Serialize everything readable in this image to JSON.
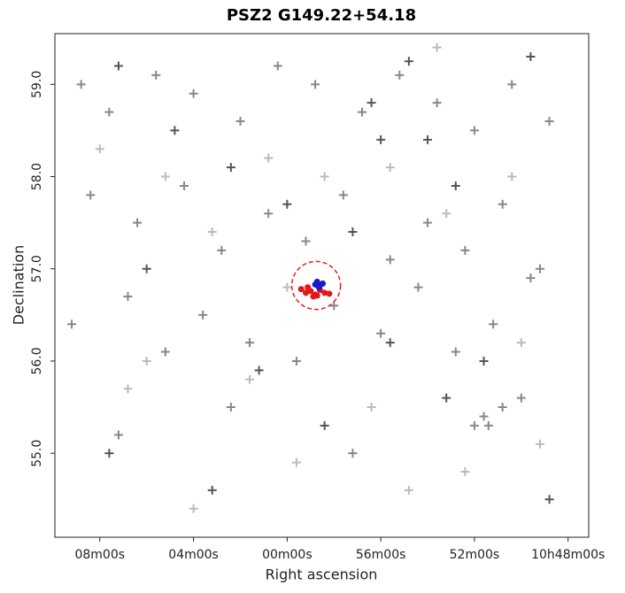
{
  "chart_data": {
    "type": "scatter",
    "title": "PSZ2 G149.22+54.18",
    "x_label": "Right ascension",
    "y_label": "Declination",
    "xlim": [
      167.48,
      161.78
    ],
    "ylim": [
      54.09,
      59.55
    ],
    "xticks": [
      {
        "value": 167,
        "label": "08m00s"
      },
      {
        "value": 166,
        "label": "04m00s"
      },
      {
        "value": 165,
        "label": "00m00s"
      },
      {
        "value": 164,
        "label": "56m00s"
      },
      {
        "value": 163,
        "label": "52m00s"
      },
      {
        "value": 162,
        "label": "10h48m00s"
      }
    ],
    "yticks": [
      {
        "value": 55,
        "label": "55.0"
      },
      {
        "value": 56,
        "label": "56.0"
      },
      {
        "value": 57,
        "label": "57.0"
      },
      {
        "value": 58,
        "label": "58.0"
      },
      {
        "value": 59,
        "label": "59.0"
      }
    ],
    "circle": {
      "x": 164.69,
      "y": 56.82,
      "r": 0.26,
      "color": "#e02020"
    },
    "series": [
      {
        "color": "#bbbbbb",
        "marker": "plus",
        "x": [
          167.0,
          166.3,
          165.8,
          165.2,
          164.6,
          163.9,
          163.3,
          162.6,
          166.7,
          165.4,
          164.1,
          163.1,
          162.3,
          166.0,
          164.9,
          163.7,
          162.5,
          166.5,
          165.0,
          163.4
        ],
        "y": [
          58.3,
          58.0,
          57.4,
          58.2,
          58.0,
          58.1,
          57.6,
          58.0,
          55.7,
          55.8,
          55.5,
          54.8,
          55.1,
          54.4,
          54.9,
          54.6,
          56.2,
          56.0,
          56.8,
          59.4
        ]
      },
      {
        "color": "#888888",
        "marker": "plus",
        "x": [
          167.2,
          166.9,
          166.4,
          166.0,
          165.5,
          165.1,
          164.7,
          164.2,
          163.8,
          163.4,
          163.0,
          162.6,
          162.2,
          167.1,
          166.6,
          166.1,
          165.7,
          165.2,
          164.8,
          164.4,
          163.9,
          163.5,
          163.1,
          162.7,
          162.3,
          167.3,
          166.7,
          166.3,
          165.9,
          165.4,
          164.9,
          164.5,
          164.0,
          163.6,
          163.2,
          162.8,
          162.4,
          166.8,
          165.6,
          164.3,
          163.0,
          162.5,
          162.9,
          162.7,
          162.85
        ],
        "y": [
          59.0,
          58.7,
          59.1,
          58.9,
          58.6,
          59.2,
          59.0,
          58.7,
          59.1,
          58.8,
          58.5,
          59.0,
          58.6,
          57.8,
          57.5,
          57.9,
          57.2,
          57.6,
          57.3,
          57.8,
          57.1,
          57.5,
          57.2,
          57.7,
          57.0,
          56.4,
          56.7,
          56.1,
          56.5,
          56.2,
          56.0,
          56.6,
          56.3,
          56.8,
          56.1,
          56.4,
          56.9,
          55.2,
          55.5,
          55.0,
          55.3,
          55.6,
          55.4,
          55.5,
          55.3
        ]
      },
      {
        "color": "#555555",
        "marker": "plus",
        "x": [
          166.8,
          166.2,
          165.6,
          164.1,
          163.5,
          163.2,
          162.4,
          165.0,
          164.3,
          166.5,
          163.9,
          162.9,
          165.3,
          164.6,
          166.9,
          163.3,
          162.2,
          165.8,
          164.0,
          163.7
        ],
        "y": [
          59.2,
          58.5,
          58.1,
          58.8,
          58.4,
          57.9,
          59.3,
          57.7,
          57.4,
          57.0,
          56.2,
          56.0,
          55.9,
          55.3,
          55.0,
          55.6,
          54.5,
          54.6,
          58.4,
          59.25
        ]
      },
      {
        "color": "#e01818",
        "marker": "dot",
        "x": [
          164.85,
          164.8,
          164.75,
          164.7,
          164.65,
          164.6,
          164.55,
          164.78,
          164.72,
          164.68
        ],
        "y": [
          56.78,
          56.74,
          56.76,
          56.72,
          56.77,
          56.74,
          56.73,
          56.8,
          56.7,
          56.71
        ]
      },
      {
        "color": "#1a1ad0",
        "marker": "dot",
        "x": [
          164.7,
          164.68,
          164.65,
          164.62,
          164.66
        ],
        "y": [
          56.83,
          56.86,
          56.82,
          56.84,
          56.8
        ]
      }
    ]
  }
}
